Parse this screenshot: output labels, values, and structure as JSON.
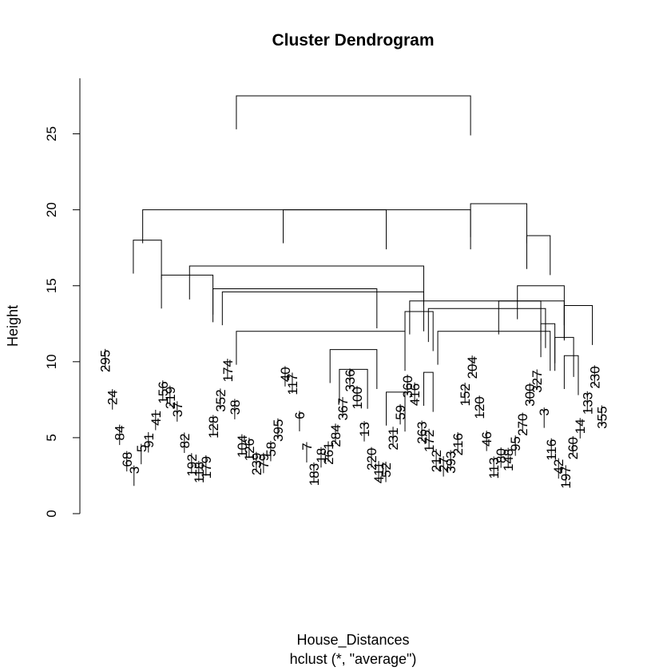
{
  "chart_data": {
    "type": "dendrogram",
    "title": "Cluster Dendrogram",
    "ylabel": "Height",
    "xlabel": "House_Distances",
    "sublabel": "hclust (*, \"average\")",
    "ylim": [
      0,
      27.5
    ],
    "y_ticks": [
      0,
      5,
      10,
      15,
      20,
      25
    ],
    "grid": false,
    "merges": [
      {
        "left": 30,
        "right": 80,
        "height": 27.5
      },
      {
        "left": 10,
        "right": 62,
        "height": 20.0
      },
      {
        "left": 40,
        "right": 80,
        "height": 20.0
      },
      {
        "left": 20,
        "right": 70,
        "height": 16.3
      },
      {
        "left": 80,
        "right": 92,
        "height": 20.4
      },
      {
        "left": 92,
        "right": 97,
        "height": 18.3
      },
      {
        "left": 67,
        "right": 95,
        "height": 14.0
      },
      {
        "left": 71,
        "right": 96,
        "height": 13.5
      },
      {
        "left": 73,
        "right": 97,
        "height": 12.0
      },
      {
        "left": 8,
        "right": 14,
        "height": 18.0
      },
      {
        "left": 14,
        "right": 25,
        "height": 15.7
      },
      {
        "left": 25,
        "right": 60,
        "height": 14.8
      },
      {
        "left": 27,
        "right": 70,
        "height": 14.6
      },
      {
        "left": 30,
        "right": 66,
        "height": 12.0
      },
      {
        "left": 66,
        "right": 72,
        "height": 13.3
      },
      {
        "left": 100,
        "right": 106,
        "height": 13.7
      },
      {
        "left": 86,
        "right": 100,
        "height": 14.0
      },
      {
        "left": 90,
        "right": 100,
        "height": 15.0
      },
      {
        "left": 95,
        "right": 98,
        "height": 12.5
      },
      {
        "left": 98,
        "right": 102,
        "height": 11.6
      },
      {
        "left": 50,
        "right": 60,
        "height": 10.8
      },
      {
        "left": 52,
        "right": 58,
        "height": 9.5
      },
      {
        "left": 62,
        "right": 66,
        "height": 8.0
      },
      {
        "left": 70,
        "right": 72,
        "height": 9.3
      },
      {
        "left": 100,
        "right": 103,
        "height": 10.4
      }
    ],
    "leaf_labels": [
      "295",
      "24",
      "84",
      "68",
      "3",
      "5",
      "91",
      "41",
      "156",
      "219",
      "37",
      "82",
      "192",
      "118",
      "179",
      "128",
      "352",
      "174",
      "38",
      "104",
      "126",
      "239",
      "79",
      "58",
      "395",
      "40",
      "117",
      "6",
      "7",
      "183",
      "18",
      "261",
      "284",
      "367",
      "336",
      "100",
      "13",
      "220",
      "411",
      "52",
      "231",
      "59",
      "360",
      "416",
      "263",
      "172",
      "212",
      "27",
      "393",
      "216",
      "152",
      "204",
      "120",
      "46",
      "113",
      "80",
      "148",
      "95",
      "270",
      "300",
      "327",
      "3",
      "116",
      "42",
      "197",
      "260",
      "14",
      "133",
      "230",
      "355"
    ]
  }
}
